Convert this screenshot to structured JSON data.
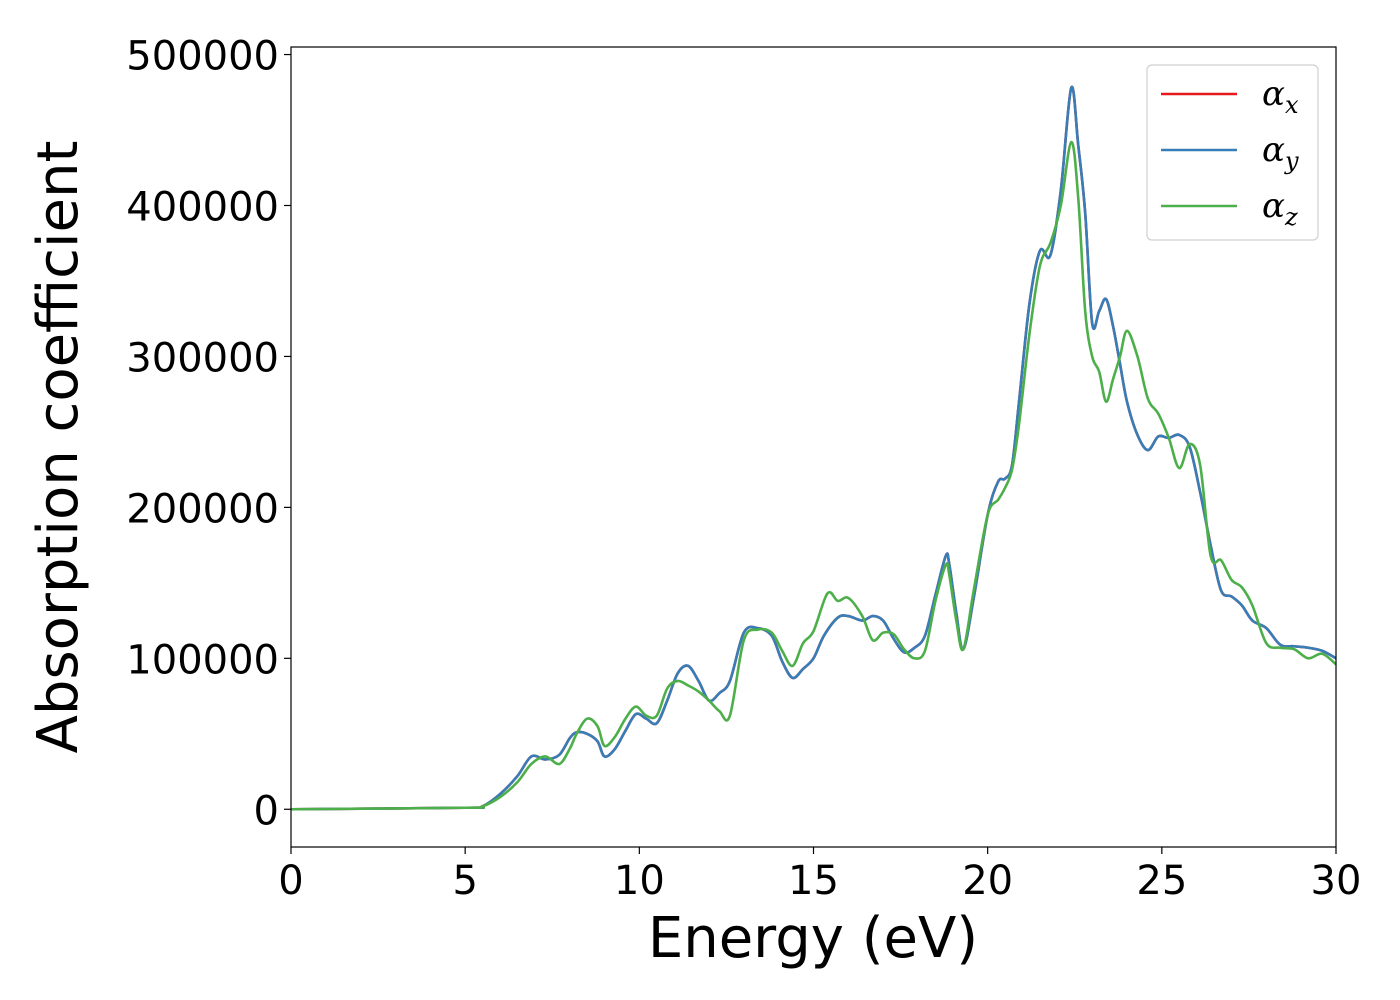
{
  "chart_data": {
    "type": "line",
    "title": "",
    "xlabel": "Energy (eV)",
    "ylabel": "Absorption coefficient",
    "xlim": [
      0,
      30
    ],
    "ylim": [
      -25000,
      505000
    ],
    "xticks": [
      0,
      5,
      10,
      15,
      20,
      25,
      30
    ],
    "yticks": [
      0,
      100000,
      200000,
      300000,
      400000,
      500000
    ],
    "grid": false,
    "legend_position": "top-right",
    "series": [
      {
        "name": "αx",
        "base": "α",
        "sub": "x",
        "color": "#e41a1c",
        "x": [
          0,
          5,
          5.5,
          6,
          6.5,
          6.9,
          7.3,
          7.7,
          8,
          8.2,
          8.5,
          8.8,
          9,
          9.3,
          9.6,
          9.9,
          10.2,
          10.5,
          10.8,
          11.1,
          11.4,
          11.7,
          12,
          12.3,
          12.6,
          13,
          13.4,
          13.8,
          14.1,
          14.4,
          14.7,
          15,
          15.3,
          15.7,
          16,
          16.4,
          16.7,
          17,
          17.3,
          17.6,
          17.9,
          18.2,
          18.5,
          18.8,
          18.9,
          19.1,
          19.3,
          19.6,
          20,
          20.3,
          20.5,
          20.7,
          20.9,
          21.2,
          21.5,
          21.8,
          22.1,
          22.4,
          22.6,
          22.8,
          23,
          23.2,
          23.4,
          23.6,
          23.8,
          24,
          24.3,
          24.6,
          24.9,
          25.2,
          25.5,
          25.8,
          26.1,
          26.4,
          26.7,
          27,
          27.3,
          27.6,
          28,
          28.4,
          28.8,
          29.2,
          29.6,
          30
        ],
        "y": [
          0,
          1000,
          2000,
          10000,
          22000,
          35000,
          33000,
          36000,
          47000,
          51000,
          50000,
          45000,
          35000,
          40000,
          52000,
          63000,
          60000,
          57000,
          72000,
          90000,
          95000,
          85000,
          72000,
          77000,
          85000,
          117000,
          120000,
          115000,
          98000,
          87000,
          93000,
          100000,
          115000,
          127000,
          128000,
          125000,
          128000,
          125000,
          113000,
          104000,
          107000,
          115000,
          142000,
          168000,
          162000,
          130000,
          106000,
          140000,
          195000,
          217000,
          219000,
          228000,
          270000,
          335000,
          370000,
          367000,
          410000,
          478000,
          440000,
          395000,
          322000,
          330000,
          338000,
          320000,
          295000,
          270000,
          248000,
          238000,
          247000,
          246000,
          248000,
          240000,
          210000,
          175000,
          145000,
          141000,
          135000,
          125000,
          120000,
          109000,
          108000,
          107000,
          105000,
          100000
        ]
      },
      {
        "name": "αy",
        "base": "α",
        "sub": "y",
        "color": "#377eb8",
        "x": [
          0,
          5,
          5.5,
          6,
          6.5,
          6.9,
          7.3,
          7.7,
          8,
          8.2,
          8.5,
          8.8,
          9,
          9.3,
          9.6,
          9.9,
          10.2,
          10.5,
          10.8,
          11.1,
          11.4,
          11.7,
          12,
          12.3,
          12.6,
          13,
          13.4,
          13.8,
          14.1,
          14.4,
          14.7,
          15,
          15.3,
          15.7,
          16,
          16.4,
          16.7,
          17,
          17.3,
          17.6,
          17.9,
          18.2,
          18.5,
          18.8,
          18.9,
          19.1,
          19.3,
          19.6,
          20,
          20.3,
          20.5,
          20.7,
          20.9,
          21.2,
          21.5,
          21.8,
          22.1,
          22.4,
          22.6,
          22.8,
          23,
          23.2,
          23.4,
          23.6,
          23.8,
          24,
          24.3,
          24.6,
          24.9,
          25.2,
          25.5,
          25.8,
          26.1,
          26.4,
          26.7,
          27,
          27.3,
          27.6,
          28,
          28.4,
          28.8,
          29.2,
          29.6,
          30
        ],
        "y": [
          0,
          1000,
          2000,
          10000,
          22000,
          35000,
          33000,
          36000,
          47000,
          51000,
          50000,
          45000,
          35000,
          40000,
          52000,
          63000,
          60000,
          57000,
          72000,
          90000,
          95000,
          85000,
          72000,
          77000,
          85000,
          117000,
          120000,
          115000,
          98000,
          87000,
          93000,
          100000,
          115000,
          127000,
          128000,
          125000,
          128000,
          125000,
          113000,
          104000,
          107000,
          115000,
          142000,
          168000,
          162000,
          130000,
          106000,
          140000,
          195000,
          217000,
          219000,
          228000,
          270000,
          335000,
          370000,
          367000,
          410000,
          478000,
          440000,
          395000,
          322000,
          330000,
          338000,
          320000,
          295000,
          270000,
          248000,
          238000,
          247000,
          246000,
          248000,
          240000,
          210000,
          175000,
          145000,
          141000,
          135000,
          125000,
          120000,
          109000,
          108000,
          107000,
          105000,
          100000
        ]
      },
      {
        "name": "αz",
        "base": "α",
        "sub": "z",
        "color": "#4daf4a",
        "x": [
          0,
          5,
          5.5,
          6,
          6.5,
          6.9,
          7.3,
          7.7,
          8,
          8.2,
          8.5,
          8.8,
          9,
          9.3,
          9.6,
          9.9,
          10.2,
          10.5,
          10.8,
          11.1,
          11.4,
          11.7,
          12,
          12.3,
          12.6,
          13,
          13.4,
          13.8,
          14.1,
          14.4,
          14.7,
          15,
          15.4,
          15.7,
          16,
          16.4,
          16.7,
          17,
          17.3,
          17.6,
          17.9,
          18.2,
          18.5,
          18.8,
          18.9,
          19.1,
          19.3,
          19.6,
          20,
          20.3,
          20.5,
          20.7,
          20.9,
          21.2,
          21.5,
          21.8,
          22.1,
          22.4,
          22.6,
          22.8,
          23,
          23.2,
          23.4,
          23.6,
          23.8,
          24,
          24.3,
          24.6,
          24.9,
          25.2,
          25.5,
          25.8,
          26.1,
          26.4,
          26.7,
          27,
          27.3,
          27.6,
          28,
          28.4,
          28.8,
          29.2,
          29.6,
          30
        ],
        "y": [
          0,
          1000,
          2000,
          8000,
          18000,
          30000,
          35000,
          30000,
          40000,
          50000,
          60000,
          55000,
          42000,
          48000,
          60000,
          68000,
          62000,
          62000,
          80000,
          85000,
          82000,
          78000,
          72000,
          65000,
          62000,
          112000,
          119000,
          117000,
          105000,
          95000,
          110000,
          118000,
          143000,
          138000,
          140000,
          128000,
          112000,
          117000,
          116000,
          106000,
          100000,
          105000,
          138000,
          162000,
          155000,
          125000,
          106000,
          145000,
          195000,
          205000,
          213000,
          225000,
          255000,
          315000,
          360000,
          375000,
          400000,
          442000,
          405000,
          330000,
          300000,
          290000,
          270000,
          285000,
          300000,
          317000,
          300000,
          272000,
          262000,
          246000,
          226000,
          242000,
          228000,
          168000,
          165000,
          152000,
          147000,
          135000,
          110000,
          107000,
          106000,
          100000,
          103000,
          96000
        ]
      }
    ]
  }
}
